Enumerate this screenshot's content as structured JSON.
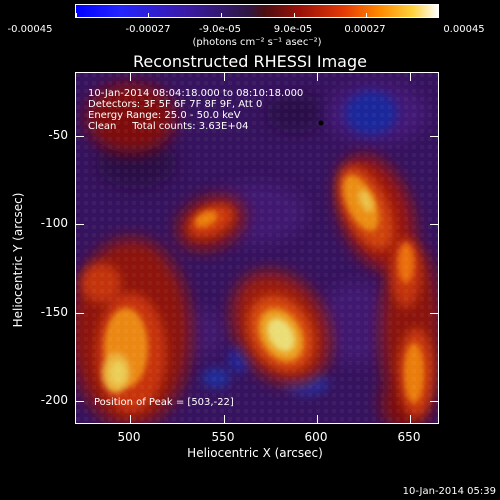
{
  "colorbar": {
    "tick_labels": [
      "-0.00045",
      "-0.00027",
      "-9.0e-05",
      "9.0e-05",
      "0.00027",
      "0.00045"
    ],
    "units": "(photons cm⁻² s⁻¹ asec⁻²)"
  },
  "title": "Reconstructed RHESSI Image",
  "info": {
    "line1": "10-Jan-2014 08:04:18.000 to 08:10:18.000",
    "line2": "Detectors: 3F 5F 6F 7F 8F 9F, Att 0",
    "line3": "Energy Range: 25.0 - 50.0 keV",
    "line4": "Clean     Total counts: 3.63E+04"
  },
  "peak_text": "Position of Peak = [503,-22]",
  "axes": {
    "xlabel": "Heliocentric X (arcsec)",
    "ylabel": "Heliocentric Y (arcsec)",
    "x_ticks": [
      "500",
      "550",
      "600",
      "650"
    ],
    "y_ticks": [
      "-50",
      "-100",
      "-150",
      "-200"
    ]
  },
  "footer": "10-Jan-2014 05:39"
}
